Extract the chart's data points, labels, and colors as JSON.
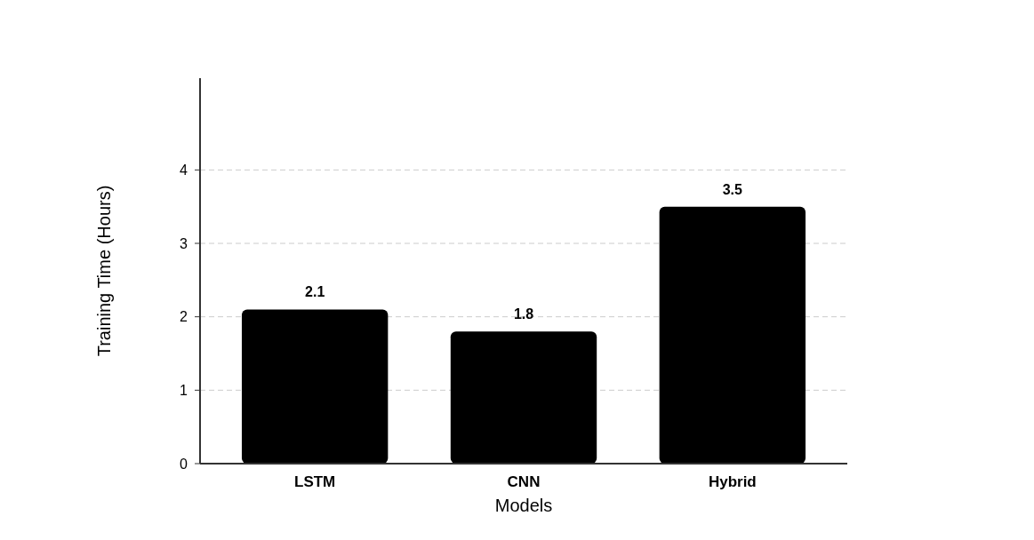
{
  "chart_data": {
    "type": "bar",
    "xlabel": "Models",
    "ylabel": "Training Time (Hours)",
    "categories": [
      "LSTM",
      "CNN",
      "Hybrid"
    ],
    "values": [
      2.1,
      1.8,
      3.5
    ],
    "data_labels": true,
    "color": "#000000",
    "ylim": [
      0,
      5.25
    ],
    "yticks": [
      0,
      1,
      2,
      3,
      4
    ],
    "grid": "y"
  }
}
